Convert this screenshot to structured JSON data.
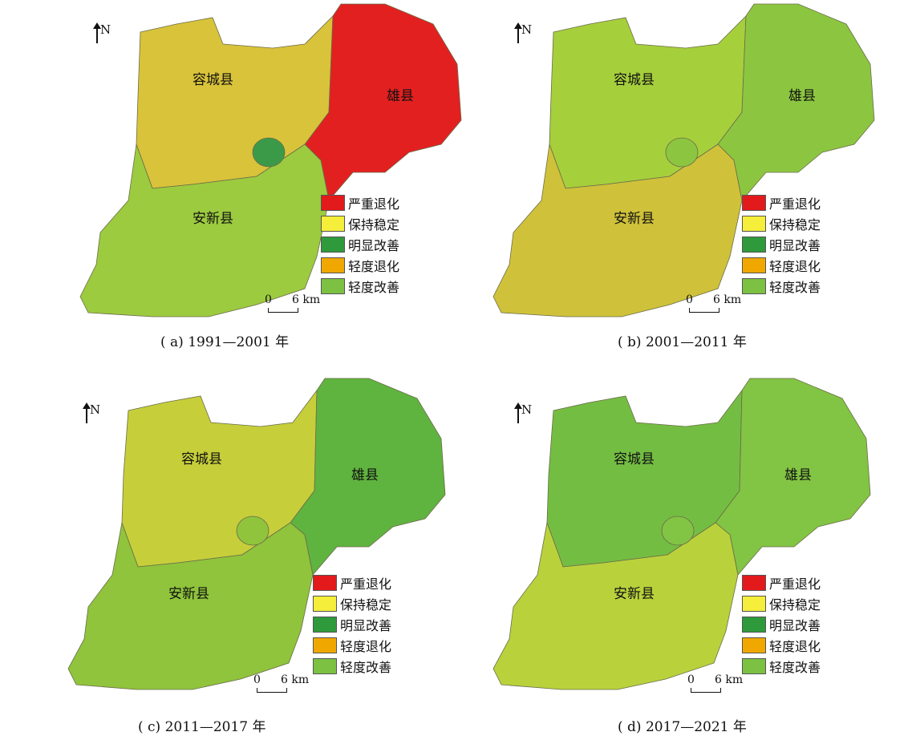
{
  "north_label": "N",
  "scale_zero": "0",
  "scale_distance": "6 km",
  "counties": {
    "rongcheng": "容城县",
    "xiongxian": "雄县",
    "anxin": "安新县"
  },
  "legend": [
    {
      "label": "严重退化",
      "color": "#e31a1c"
    },
    {
      "label": "保持稳定",
      "color": "#f5ee3a"
    },
    {
      "label": "明显改善",
      "color": "#2e9a3c"
    },
    {
      "label": "轻度退化",
      "color": "#f0a800"
    },
    {
      "label": "轻度改善",
      "color": "#7cc142"
    }
  ],
  "panels": [
    {
      "id": "a",
      "caption": "( a) 1991—2001 年",
      "palette": {
        "north_west": "#d9c33a",
        "east": "#e32020",
        "south": "#9ccb3f",
        "lake": "#3b9a48"
      }
    },
    {
      "id": "b",
      "caption": "( b) 2001—2011 年",
      "palette": {
        "north_west": "#a6cf3c",
        "east": "#8cc640",
        "south": "#cfc23a",
        "lake": "#8cc640"
      }
    },
    {
      "id": "c",
      "caption": "( c) 2011—2017 年",
      "palette": {
        "north_west": "#c6cf3a",
        "east": "#5fb33f",
        "south": "#8fc43c",
        "lake": "#8fc43c"
      }
    },
    {
      "id": "d",
      "caption": "( d) 2017—2021 年",
      "palette": {
        "north_west": "#74bd43",
        "east": "#82c443",
        "south": "#b9d23c",
        "lake": "#82c443"
      }
    }
  ]
}
